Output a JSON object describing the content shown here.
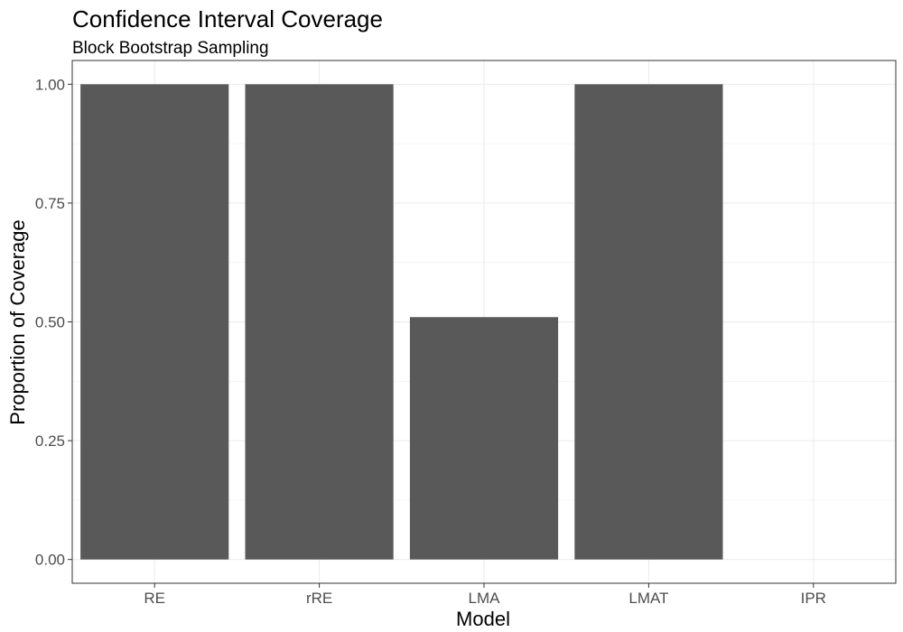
{
  "chart_data": {
    "type": "bar",
    "title": "Confidence Interval Coverage",
    "subtitle": "Block Bootstrap Sampling",
    "xlabel": "Model",
    "ylabel": "Proportion of Coverage",
    "categories": [
      "RE",
      "rRE",
      "LMA",
      "LMAT",
      "IPR"
    ],
    "values": [
      1.0,
      1.0,
      0.51,
      1.0,
      0.0
    ],
    "ylim": [
      -0.05,
      1.05
    ],
    "yticks": [
      0.0,
      0.25,
      0.5,
      0.75,
      1.0
    ],
    "ytick_labels": [
      "0.00",
      "0.25",
      "0.50",
      "0.75",
      "1.00"
    ],
    "grid": true,
    "bar_color": "#595959",
    "theme": "bw"
  }
}
